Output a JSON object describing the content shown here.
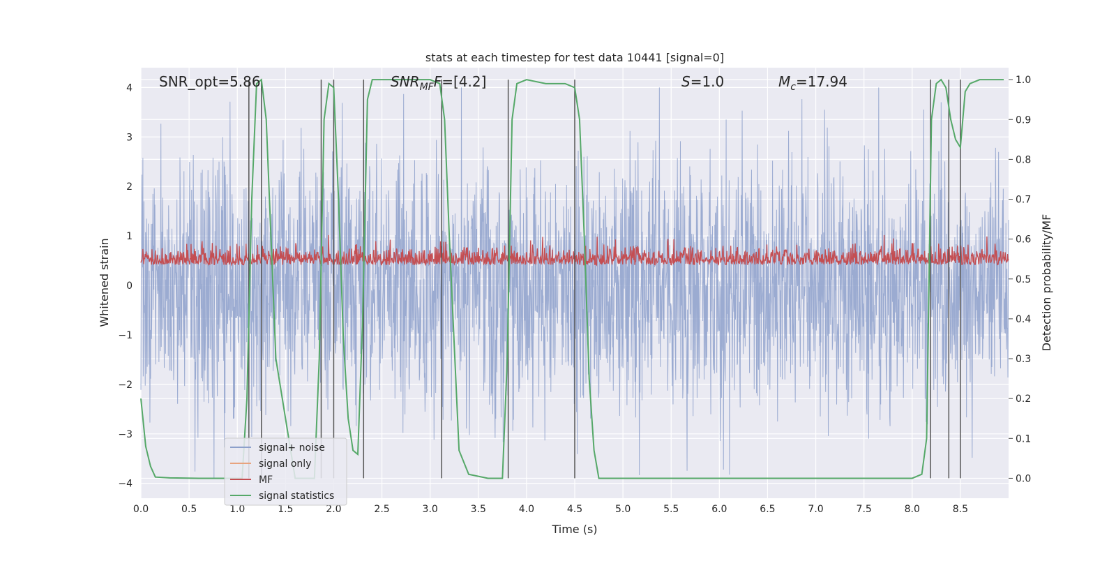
{
  "chart_data": {
    "type": "line",
    "title": "stats at each timestep for test data 10441 [signal=0]",
    "xlabel": "Time (s)",
    "ylabel": "Whitened strain",
    "ylabel_right": "Detection probability/MF",
    "xlim": [
      0,
      9
    ],
    "ylim": [
      -4.3,
      4.4
    ],
    "ylim_right": [
      -0.05,
      1.03
    ],
    "x_ticks": [
      "0.0",
      "0.5",
      "1.0",
      "1.5",
      "2.0",
      "2.5",
      "3.0",
      "3.5",
      "4.0",
      "4.5",
      "5.0",
      "5.5",
      "6.0",
      "6.5",
      "7.0",
      "7.5",
      "8.0",
      "8.5"
    ],
    "y_ticks": [
      "4",
      "3",
      "2",
      "1",
      "0",
      "−1",
      "−2",
      "−3",
      "−4"
    ],
    "y_ticks_right": [
      "1.0",
      "0.9",
      "0.8",
      "0.7",
      "0.6",
      "0.5",
      "0.4",
      "0.3",
      "0.2",
      "0.1",
      "0.0"
    ],
    "grid": true,
    "legend_position": "lower-left",
    "annotations": {
      "snr_opt": "SNR_opt=5.86",
      "snr_mf_sym": "SNR",
      "snr_mf_sub": "MF",
      "snr_mf_val": "=[4.2]",
      "s_sym": "S",
      "s_val": "=1.0",
      "mc_sym": "M",
      "mc_sub": "c",
      "mc_val": "=17.94"
    },
    "series": [
      {
        "name": "signal+ noise",
        "color": "#8da0cb",
        "description": "noise, roughly symmetric, peaks ~ ±4"
      },
      {
        "name": "signal only",
        "color": "#e8a37e",
        "values": []
      },
      {
        "name": "MF",
        "color": "#c44e52",
        "axis": "right",
        "range": [
          0.5,
          0.6
        ]
      },
      {
        "name": "signal statistics",
        "color": "#55a868",
        "axis": "right",
        "x": [
          0.0,
          0.05,
          0.1,
          0.15,
          0.3,
          0.6,
          0.9,
          1.05,
          1.1,
          1.15,
          1.2,
          1.25,
          1.3,
          1.35,
          1.4,
          1.6,
          1.8,
          1.85,
          1.9,
          1.95,
          2.0,
          2.05,
          2.1,
          2.15,
          2.2,
          2.25,
          2.3,
          2.35,
          2.4,
          2.5,
          3.0,
          3.1,
          3.15,
          3.2,
          3.3,
          3.4,
          3.6,
          3.75,
          3.8,
          3.85,
          3.9,
          4.0,
          4.2,
          4.4,
          4.5,
          4.55,
          4.6,
          4.65,
          4.7,
          4.75,
          5.0,
          6.0,
          7.0,
          8.0,
          8.1,
          8.15,
          8.2,
          8.25,
          8.3,
          8.35,
          8.4,
          8.45,
          8.5,
          8.55,
          8.6,
          8.7,
          8.8,
          8.95
        ],
        "values": [
          0.2,
          0.08,
          0.03,
          0.003,
          0.001,
          0.0,
          0.0,
          0.0,
          0.2,
          0.7,
          0.99,
          1.0,
          0.9,
          0.6,
          0.3,
          0.0,
          0.0,
          0.3,
          0.9,
          0.99,
          0.98,
          0.7,
          0.35,
          0.15,
          0.07,
          0.06,
          0.4,
          0.95,
          1.0,
          1.0,
          1.0,
          0.99,
          0.9,
          0.6,
          0.07,
          0.01,
          0.0,
          0.0,
          0.3,
          0.9,
          0.99,
          1.0,
          0.99,
          0.99,
          0.98,
          0.9,
          0.6,
          0.25,
          0.07,
          0.0,
          0.0,
          0.0,
          0.0,
          0.0,
          0.01,
          0.1,
          0.9,
          0.99,
          1.0,
          0.98,
          0.9,
          0.85,
          0.83,
          0.97,
          0.99,
          1.0,
          1.0,
          1.0
        ]
      }
    ],
    "vertical_lines_x": [
      1.12,
      1.25,
      1.87,
      2.0,
      2.31,
      3.12,
      3.81,
      4.5,
      8.19,
      8.38,
      8.5
    ]
  }
}
